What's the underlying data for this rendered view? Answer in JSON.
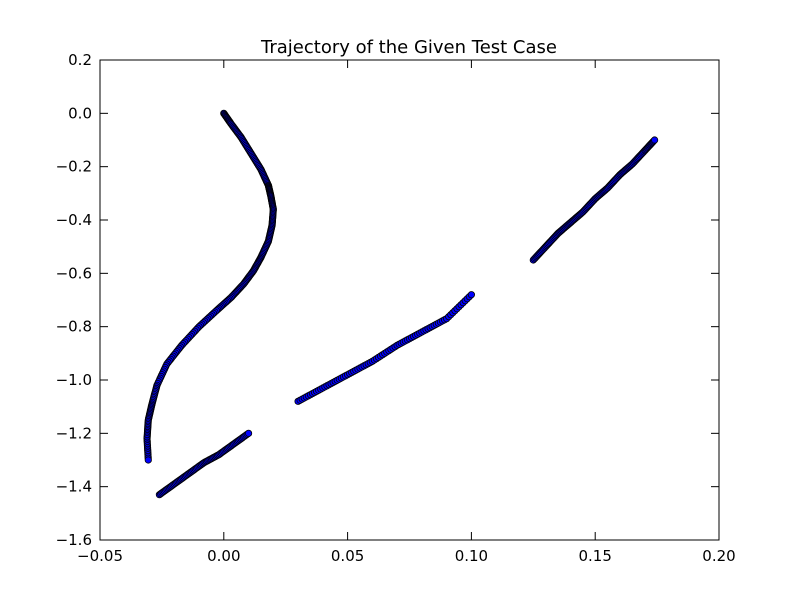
{
  "chart_data": {
    "type": "scatter",
    "title": "Trajectory of the Given Test Case",
    "xlabel": "",
    "ylabel": "",
    "xlim": [
      -0.05,
      0.2
    ],
    "ylim": [
      -1.6,
      0.2
    ],
    "xticks": [
      "−0.05",
      "0.00",
      "0.05",
      "0.10",
      "0.15",
      "0.20"
    ],
    "yticks": [
      "0.2",
      "0.0",
      "−0.2",
      "−0.4",
      "−0.6",
      "−0.8",
      "−1.0",
      "−1.2",
      "−1.4",
      "−1.6"
    ],
    "xtick_values": [
      -0.05,
      0.0,
      0.05,
      0.1,
      0.15,
      0.2
    ],
    "ytick_values": [
      0.2,
      0.0,
      -0.2,
      -0.4,
      -0.6,
      -0.8,
      -1.0,
      -1.2,
      -1.4,
      -1.6
    ],
    "grid": false,
    "marker_face_color": "#0000ff",
    "marker_edge_color": "#000000",
    "series": [
      {
        "x": [
          0.0,
          0.003,
          0.007,
          0.011,
          0.015,
          0.018,
          0.019,
          0.02,
          0.0195,
          0.018,
          0.015,
          0.012,
          0.008,
          0.003,
          -0.003,
          -0.01,
          -0.017,
          -0.023,
          -0.027,
          -0.029,
          -0.0305,
          -0.031,
          -0.0305
        ],
        "y": [
          0.0,
          -0.04,
          -0.09,
          -0.15,
          -0.21,
          -0.27,
          -0.31,
          -0.36,
          -0.42,
          -0.48,
          -0.54,
          -0.59,
          -0.64,
          -0.69,
          -0.74,
          -0.8,
          -0.87,
          -0.94,
          -1.02,
          -1.09,
          -1.15,
          -1.22,
          -1.3
        ]
      },
      {
        "x": [
          -0.026,
          -0.02,
          -0.014,
          -0.008,
          -0.002,
          0.004,
          0.01
        ],
        "y": [
          -1.43,
          -1.39,
          -1.35,
          -1.31,
          -1.28,
          -1.24,
          -1.2
        ]
      },
      {
        "x": [
          0.03,
          0.04,
          0.05,
          0.06,
          0.07,
          0.08,
          0.09,
          0.1
        ],
        "y": [
          -1.08,
          -1.03,
          -0.98,
          -0.93,
          -0.87,
          -0.82,
          -0.77,
          -0.68
        ]
      },
      {
        "x": [
          0.125,
          0.13,
          0.135,
          0.14,
          0.145,
          0.15,
          0.155,
          0.16,
          0.165,
          0.17,
          0.174
        ],
        "y": [
          -0.55,
          -0.5,
          -0.45,
          -0.41,
          -0.37,
          -0.32,
          -0.28,
          -0.23,
          -0.19,
          -0.14,
          -0.1
        ]
      }
    ]
  }
}
